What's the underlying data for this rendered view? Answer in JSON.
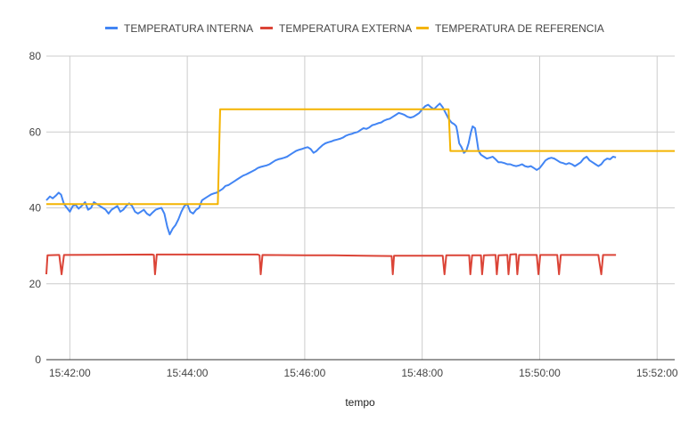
{
  "chart_data": {
    "type": "line",
    "xlabel": "tempo",
    "ylabel": "",
    "ylim": [
      0,
      80
    ],
    "yticks": [
      0,
      20,
      40,
      60,
      80
    ],
    "xlim_min": [
      41.6,
      52.3
    ],
    "xticks": [
      {
        "label": "15:42:00",
        "min": 42
      },
      {
        "label": "15:44:00",
        "min": 44
      },
      {
        "label": "15:46:00",
        "min": 46
      },
      {
        "label": "15:48:00",
        "min": 48
      },
      {
        "label": "15:50:00",
        "min": 50
      },
      {
        "label": "15:52:00",
        "min": 52
      }
    ],
    "grid": true,
    "legend": "top",
    "series": [
      {
        "name": "TEMPERATURA INTERNA",
        "color": "#4285F4",
        "points": [
          [
            41.6,
            42.0
          ],
          [
            41.66,
            43.0
          ],
          [
            41.71,
            42.5
          ],
          [
            41.76,
            43.2
          ],
          [
            41.81,
            44.0
          ],
          [
            41.85,
            43.5
          ],
          [
            41.9,
            41.0
          ],
          [
            41.95,
            40.0
          ],
          [
            42.0,
            39.0
          ],
          [
            42.05,
            40.5
          ],
          [
            42.1,
            40.8
          ],
          [
            42.15,
            39.8
          ],
          [
            42.2,
            40.5
          ],
          [
            42.26,
            41.5
          ],
          [
            42.31,
            39.5
          ],
          [
            42.36,
            40.0
          ],
          [
            42.41,
            41.5
          ],
          [
            42.46,
            41.0
          ],
          [
            42.51,
            40.5
          ],
          [
            42.56,
            40.0
          ],
          [
            42.61,
            39.5
          ],
          [
            42.66,
            38.5
          ],
          [
            42.71,
            39.5
          ],
          [
            42.76,
            40.0
          ],
          [
            42.81,
            40.5
          ],
          [
            42.86,
            39.0
          ],
          [
            42.91,
            39.5
          ],
          [
            42.96,
            40.5
          ],
          [
            43.01,
            41.2
          ],
          [
            43.06,
            40.5
          ],
          [
            43.11,
            39.0
          ],
          [
            43.16,
            38.5
          ],
          [
            43.21,
            39.0
          ],
          [
            43.26,
            39.5
          ],
          [
            43.31,
            38.5
          ],
          [
            43.36,
            38.0
          ],
          [
            43.41,
            38.8
          ],
          [
            43.46,
            39.5
          ],
          [
            43.51,
            39.8
          ],
          [
            43.56,
            40.0
          ],
          [
            43.61,
            38.5
          ],
          [
            43.66,
            35.0
          ],
          [
            43.7,
            33.0
          ],
          [
            43.75,
            34.5
          ],
          [
            43.8,
            35.5
          ],
          [
            43.85,
            37.0
          ],
          [
            43.9,
            39.0
          ],
          [
            43.95,
            40.5
          ],
          [
            44.0,
            41.0
          ],
          [
            44.05,
            39.0
          ],
          [
            44.1,
            38.5
          ],
          [
            44.15,
            39.5
          ],
          [
            44.2,
            40.0
          ],
          [
            44.25,
            42.0
          ],
          [
            44.3,
            42.5
          ],
          [
            44.35,
            43.0
          ],
          [
            44.4,
            43.5
          ],
          [
            44.45,
            43.8
          ],
          [
            44.5,
            44.0
          ],
          [
            44.55,
            44.5
          ],
          [
            44.6,
            45.0
          ],
          [
            44.65,
            45.8
          ],
          [
            44.7,
            46.0
          ],
          [
            44.75,
            46.5
          ],
          [
            44.8,
            47.0
          ],
          [
            44.85,
            47.5
          ],
          [
            44.9,
            48.0
          ],
          [
            44.95,
            48.5
          ],
          [
            45.0,
            48.8
          ],
          [
            45.05,
            49.2
          ],
          [
            45.1,
            49.6
          ],
          [
            45.15,
            50.0
          ],
          [
            45.2,
            50.5
          ],
          [
            45.25,
            50.8
          ],
          [
            45.3,
            51.0
          ],
          [
            45.35,
            51.2
          ],
          [
            45.4,
            51.5
          ],
          [
            45.45,
            52.0
          ],
          [
            45.5,
            52.5
          ],
          [
            45.55,
            52.8
          ],
          [
            45.6,
            53.0
          ],
          [
            45.65,
            53.2
          ],
          [
            45.7,
            53.5
          ],
          [
            45.75,
            54.0
          ],
          [
            45.8,
            54.5
          ],
          [
            45.85,
            55.0
          ],
          [
            45.9,
            55.3
          ],
          [
            45.95,
            55.5
          ],
          [
            46.0,
            55.8
          ],
          [
            46.05,
            56.0
          ],
          [
            46.1,
            55.5
          ],
          [
            46.15,
            54.5
          ],
          [
            46.2,
            55.0
          ],
          [
            46.25,
            55.8
          ],
          [
            46.3,
            56.5
          ],
          [
            46.35,
            57.0
          ],
          [
            46.4,
            57.3
          ],
          [
            46.45,
            57.5
          ],
          [
            46.5,
            57.8
          ],
          [
            46.55,
            58.0
          ],
          [
            46.6,
            58.2
          ],
          [
            46.65,
            58.5
          ],
          [
            46.7,
            59.0
          ],
          [
            46.75,
            59.3
          ],
          [
            46.8,
            59.5
          ],
          [
            46.85,
            59.8
          ],
          [
            46.9,
            60.0
          ],
          [
            46.95,
            60.5
          ],
          [
            47.0,
            61.0
          ],
          [
            47.05,
            60.8
          ],
          [
            47.1,
            61.2
          ],
          [
            47.15,
            61.8
          ],
          [
            47.2,
            62.0
          ],
          [
            47.25,
            62.3
          ],
          [
            47.3,
            62.5
          ],
          [
            47.35,
            63.0
          ],
          [
            47.4,
            63.3
          ],
          [
            47.45,
            63.5
          ],
          [
            47.5,
            64.0
          ],
          [
            47.55,
            64.5
          ],
          [
            47.6,
            65.0
          ],
          [
            47.65,
            64.8
          ],
          [
            47.7,
            64.5
          ],
          [
            47.75,
            64.0
          ],
          [
            47.8,
            63.8
          ],
          [
            47.85,
            64.0
          ],
          [
            47.9,
            64.5
          ],
          [
            47.95,
            65.0
          ],
          [
            48.0,
            66.0
          ],
          [
            48.05,
            66.8
          ],
          [
            48.1,
            67.2
          ],
          [
            48.15,
            66.5
          ],
          [
            48.2,
            66.0
          ],
          [
            48.25,
            66.8
          ],
          [
            48.3,
            67.5
          ],
          [
            48.35,
            66.5
          ],
          [
            48.4,
            65.0
          ],
          [
            48.45,
            63.5
          ],
          [
            48.5,
            62.5
          ],
          [
            48.55,
            62.0
          ],
          [
            48.58,
            61.5
          ],
          [
            48.6,
            60.0
          ],
          [
            48.63,
            57.0
          ],
          [
            48.67,
            56.0
          ],
          [
            48.71,
            54.5
          ],
          [
            48.75,
            55.0
          ],
          [
            48.79,
            57.0
          ],
          [
            48.83,
            60.0
          ],
          [
            48.86,
            61.5
          ],
          [
            48.9,
            61.0
          ],
          [
            48.93,
            58.0
          ],
          [
            48.96,
            55.0
          ],
          [
            49.0,
            54.0
          ],
          [
            49.05,
            53.5
          ],
          [
            49.1,
            53.0
          ],
          [
            49.15,
            53.2
          ],
          [
            49.2,
            53.5
          ],
          [
            49.25,
            52.8
          ],
          [
            49.3,
            52.0
          ],
          [
            49.35,
            52.0
          ],
          [
            49.4,
            51.8
          ],
          [
            49.45,
            51.5
          ],
          [
            49.5,
            51.5
          ],
          [
            49.55,
            51.2
          ],
          [
            49.6,
            51.0
          ],
          [
            49.65,
            51.2
          ],
          [
            49.7,
            51.5
          ],
          [
            49.75,
            51.0
          ],
          [
            49.8,
            50.8
          ],
          [
            49.85,
            51.0
          ],
          [
            49.9,
            50.5
          ],
          [
            49.95,
            50.0
          ],
          [
            50.0,
            50.5
          ],
          [
            50.05,
            51.5
          ],
          [
            50.1,
            52.5
          ],
          [
            50.15,
            53.0
          ],
          [
            50.2,
            53.2
          ],
          [
            50.25,
            53.0
          ],
          [
            50.3,
            52.5
          ],
          [
            50.35,
            52.0
          ],
          [
            50.4,
            51.8
          ],
          [
            50.45,
            51.5
          ],
          [
            50.5,
            51.8
          ],
          [
            50.55,
            51.5
          ],
          [
            50.6,
            51.0
          ],
          [
            50.65,
            51.5
          ],
          [
            50.7,
            52.0
          ],
          [
            50.75,
            53.0
          ],
          [
            50.8,
            53.5
          ],
          [
            50.85,
            52.5
          ],
          [
            50.9,
            52.0
          ],
          [
            50.95,
            51.5
          ],
          [
            51.0,
            51.0
          ],
          [
            51.05,
            51.5
          ],
          [
            51.1,
            52.5
          ],
          [
            51.15,
            53.0
          ],
          [
            51.2,
            52.8
          ],
          [
            51.25,
            53.5
          ],
          [
            51.3,
            53.3
          ]
        ]
      },
      {
        "name": "TEMPERATURA EXTERNA",
        "color": "#DB4437",
        "points": [
          [
            41.6,
            22.5
          ],
          [
            41.62,
            27.5
          ],
          [
            41.8,
            27.6
          ],
          [
            41.82,
            27.6
          ],
          [
            41.86,
            22.5
          ],
          [
            41.9,
            27.6
          ],
          [
            43.4,
            27.7
          ],
          [
            43.43,
            27.6
          ],
          [
            43.45,
            22.5
          ],
          [
            43.48,
            27.7
          ],
          [
            45.2,
            27.7
          ],
          [
            45.23,
            27.5
          ],
          [
            45.25,
            22.5
          ],
          [
            45.28,
            27.6
          ],
          [
            46.0,
            27.5
          ],
          [
            46.5,
            27.5
          ],
          [
            47.0,
            27.4
          ],
          [
            47.48,
            27.3
          ],
          [
            47.5,
            22.5
          ],
          [
            47.52,
            27.4
          ],
          [
            48.35,
            27.4
          ],
          [
            48.38,
            22.5
          ],
          [
            48.41,
            27.5
          ],
          [
            48.8,
            27.5
          ],
          [
            48.82,
            22.5
          ],
          [
            48.85,
            27.5
          ],
          [
            49.0,
            27.5
          ],
          [
            49.02,
            22.5
          ],
          [
            49.05,
            27.5
          ],
          [
            49.25,
            27.6
          ],
          [
            49.27,
            22.5
          ],
          [
            49.3,
            27.5
          ],
          [
            49.45,
            27.6
          ],
          [
            49.47,
            22.5
          ],
          [
            49.5,
            27.7
          ],
          [
            49.6,
            27.8
          ],
          [
            49.62,
            22.5
          ],
          [
            49.65,
            27.6
          ],
          [
            49.95,
            27.6
          ],
          [
            49.98,
            22.5
          ],
          [
            50.01,
            27.6
          ],
          [
            50.3,
            27.6
          ],
          [
            50.33,
            22.5
          ],
          [
            50.36,
            27.6
          ],
          [
            51.0,
            27.6
          ],
          [
            51.05,
            22.5
          ],
          [
            51.08,
            27.6
          ],
          [
            51.3,
            27.6
          ]
        ]
      },
      {
        "name": "TEMPERATURA DE REFERENCIA",
        "color": "#F4B400",
        "points": [
          [
            41.6,
            41.0
          ],
          [
            44.52,
            41.0
          ],
          [
            44.56,
            66.0
          ],
          [
            48.45,
            66.0
          ],
          [
            48.48,
            55.0
          ],
          [
            52.3,
            55.0
          ]
        ]
      }
    ]
  }
}
